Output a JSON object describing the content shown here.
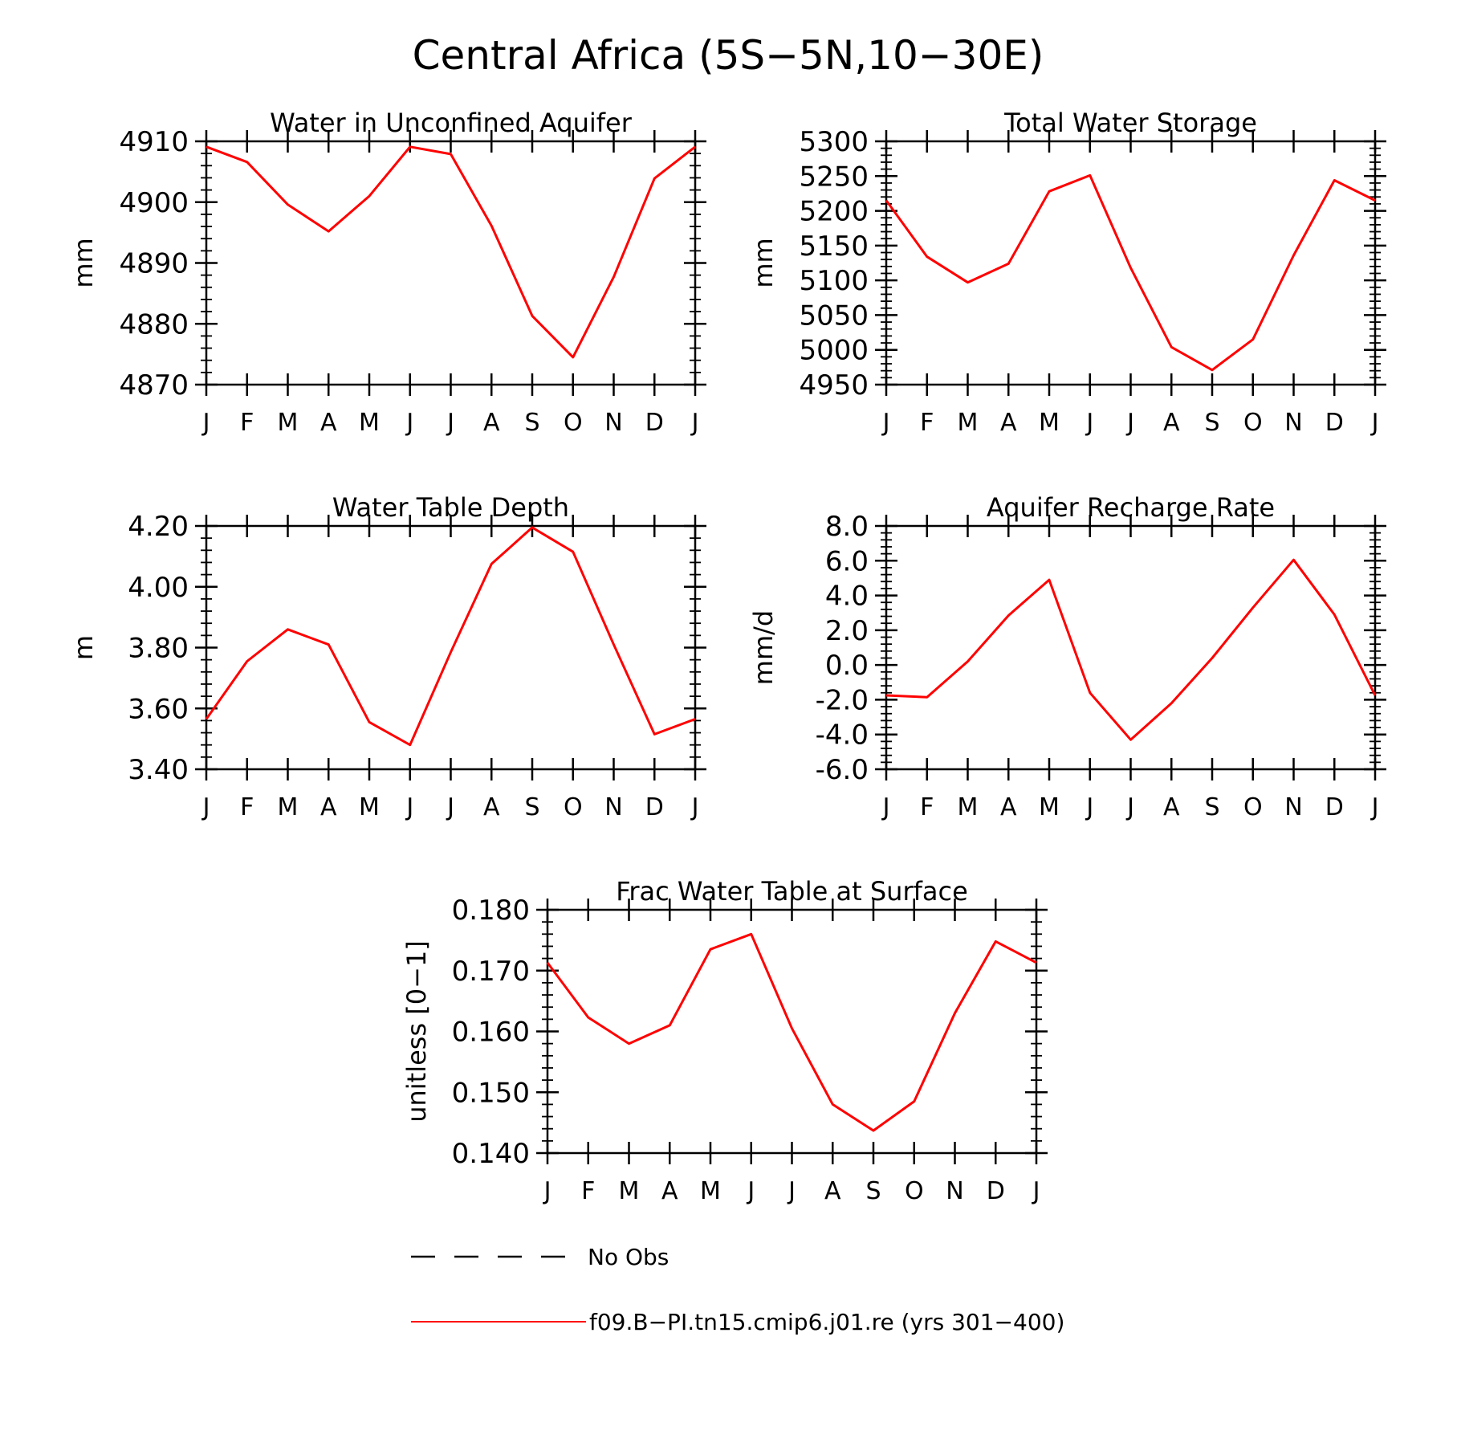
{
  "figure_title": "Central Africa (5S−5N,10−30E)",
  "colors": {
    "model_line": "#ff0000",
    "axes": "#000000",
    "obs_line": "#000000"
  },
  "legend": [
    {
      "label": "No Obs",
      "style": "dashed",
      "color": "#000000"
    },
    {
      "label": "f09.B−PI.tn15.cmip6.j01.re (yrs 301−400)",
      "style": "solid",
      "color": "#ff0000"
    }
  ],
  "chart_data": [
    {
      "type": "line",
      "title": "Water in Unconfined Aquifer",
      "ylabel": "mm",
      "categories": [
        "J",
        "F",
        "M",
        "A",
        "M",
        "J",
        "J",
        "A",
        "S",
        "O",
        "N",
        "D",
        "J"
      ],
      "ylim": [
        4870,
        4910
      ],
      "yticks": [
        "4870",
        "4880",
        "4890",
        "4900",
        "4910"
      ],
      "series": [
        {
          "name": "f09.B−PI.tn15.cmip6.j01.re (yrs 301−400)",
          "values": [
            4909.1,
            4906.6,
            4899.6,
            4895.2,
            4901.0,
            4909.1,
            4907.9,
            4896.1,
            4881.3,
            4874.5,
            4887.7,
            4903.9,
            4909.1
          ]
        }
      ]
    },
    {
      "type": "line",
      "title": "Total Water Storage",
      "ylabel": "mm",
      "categories": [
        "J",
        "F",
        "M",
        "A",
        "M",
        "J",
        "J",
        "A",
        "S",
        "O",
        "N",
        "D",
        "J"
      ],
      "ylim": [
        4950,
        5300
      ],
      "yticks": [
        "4950",
        "5000",
        "5050",
        "5100",
        "5150",
        "5200",
        "5250",
        "5300"
      ],
      "series": [
        {
          "name": "f09.B−PI.tn15.cmip6.j01.re (yrs 301−400)",
          "values": [
            5215,
            5134,
            5097,
            5124,
            5228,
            5251,
            5118,
            5004,
            4971,
            5015,
            5136,
            5244,
            5215
          ]
        }
      ]
    },
    {
      "type": "line",
      "title": "Water Table Depth",
      "ylabel": "m",
      "categories": [
        "J",
        "F",
        "M",
        "A",
        "M",
        "J",
        "J",
        "A",
        "S",
        "O",
        "N",
        "D",
        "J"
      ],
      "ylim": [
        3.4,
        4.2
      ],
      "yticks": [
        "3.40",
        "3.60",
        "3.80",
        "4.00",
        "4.20"
      ],
      "series": [
        {
          "name": "f09.B−PI.tn15.cmip6.j01.re (yrs 301−400)",
          "values": [
            3.565,
            3.755,
            3.86,
            3.81,
            3.555,
            3.48,
            3.785,
            4.075,
            4.195,
            4.115,
            3.81,
            3.515,
            3.565
          ]
        }
      ]
    },
    {
      "type": "line",
      "title": "Aquifer Recharge Rate",
      "ylabel": "mm/d",
      "categories": [
        "J",
        "F",
        "M",
        "A",
        "M",
        "J",
        "J",
        "A",
        "S",
        "O",
        "N",
        "D",
        "J"
      ],
      "ylim": [
        -6.0,
        8.0
      ],
      "yticks": [
        "-6.0",
        "-4.0",
        "-2.0",
        "0.0",
        "2.0",
        "4.0",
        "6.0",
        "8.0"
      ],
      "series": [
        {
          "name": "f09.B−PI.tn15.cmip6.j01.re (yrs 301−400)",
          "values": [
            -1.75,
            -1.85,
            0.2,
            2.85,
            4.9,
            -1.6,
            -4.3,
            -2.2,
            0.4,
            3.3,
            6.05,
            2.9,
            -1.75
          ]
        }
      ]
    },
    {
      "type": "line",
      "title": "Frac Water Table at Surface",
      "ylabel": "unitless [0−1]",
      "categories": [
        "J",
        "F",
        "M",
        "A",
        "M",
        "J",
        "J",
        "A",
        "S",
        "O",
        "N",
        "D",
        "J"
      ],
      "ylim": [
        0.14,
        0.18
      ],
      "yticks": [
        "0.140",
        "0.150",
        "0.160",
        "0.170",
        "0.180"
      ],
      "series": [
        {
          "name": "f09.B−PI.tn15.cmip6.j01.re (yrs 301−400)",
          "values": [
            0.1713,
            0.1623,
            0.158,
            0.161,
            0.1735,
            0.176,
            0.1605,
            0.148,
            0.1437,
            0.1485,
            0.163,
            0.1748,
            0.1713
          ]
        }
      ]
    }
  ]
}
